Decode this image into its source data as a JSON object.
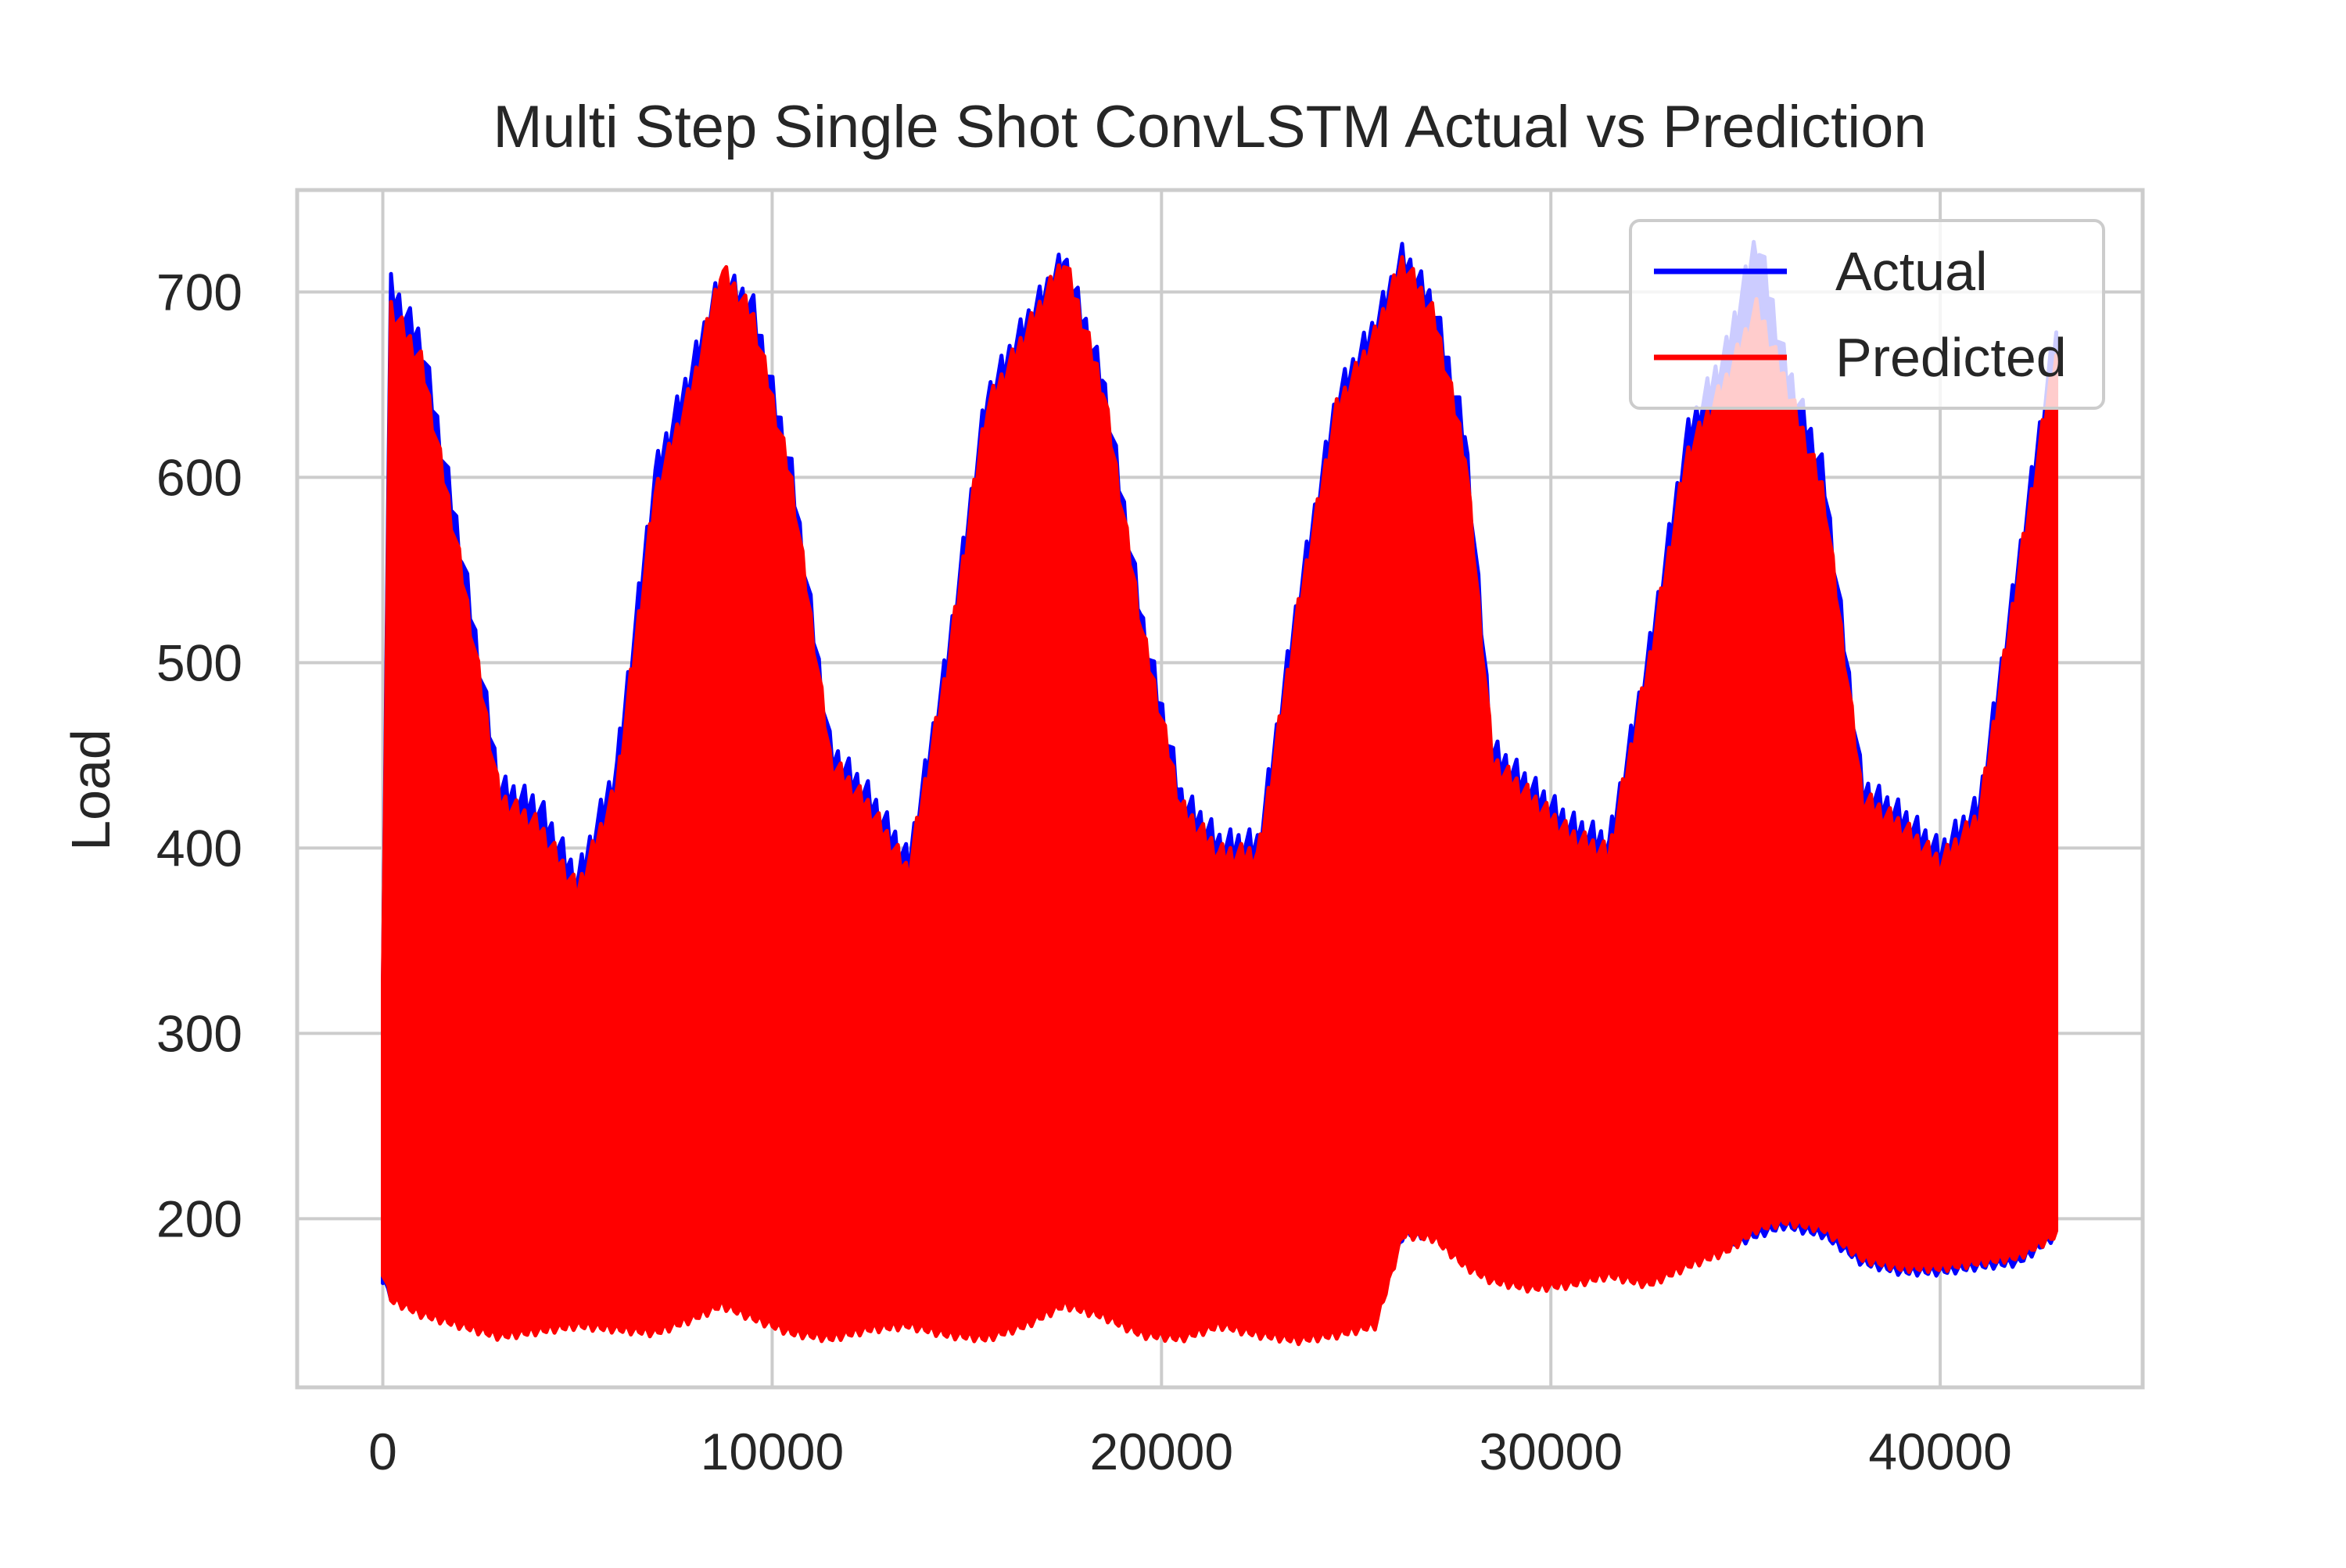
{
  "chart_data": {
    "type": "line",
    "title": "Multi Step Single Shot ConvLSTM Actual vs Prediction",
    "xlabel": "",
    "ylabel": "Load",
    "xlim": [
      -2200,
      45200
    ],
    "ylim": [
      109,
      755
    ],
    "x_ticks": [
      0,
      10000,
      20000,
      30000,
      40000
    ],
    "x_tick_labels": [
      "0",
      "10000",
      "20000",
      "30000",
      "40000"
    ],
    "y_ticks": [
      200,
      300,
      400,
      500,
      600,
      700
    ],
    "y_tick_labels": [
      "200",
      "300",
      "400",
      "500",
      "600",
      "700"
    ],
    "grid": true,
    "legend_position": "upper-right",
    "series": [
      {
        "name": "Actual",
        "color": "#0000ff",
        "envelope": {
          "x": [
            0,
            200,
            1000,
            2000,
            3000,
            4000,
            5000,
            6000,
            7000,
            8000,
            8700,
            9500,
            10500,
            11500,
            12500,
            13500,
            14500,
            15500,
            16500,
            17500,
            18500,
            19500,
            20500,
            21500,
            22500,
            23500,
            24500,
            25500,
            26200,
            27000,
            27800,
            28500,
            29500,
            30500,
            31500,
            32500,
            33500,
            34500,
            35300,
            36000,
            37000,
            38000,
            39000,
            40000,
            41000,
            42000,
            43000
          ],
          "upper": [
            330,
            700,
            670,
            560,
            430,
            420,
            380,
            440,
            600,
            660,
            705,
            690,
            600,
            450,
            425,
            390,
            500,
            640,
            680,
            715,
            650,
            520,
            425,
            400,
            400,
            530,
            640,
            680,
            717,
            690,
            620,
            450,
            430,
            410,
            400,
            500,
            620,
            665,
            727,
            660,
            600,
            430,
            415,
            395,
            420,
            550,
            680
          ],
          "lower": [
            170,
            162,
            155,
            150,
            145,
            148,
            150,
            148,
            146,
            155,
            160,
            155,
            145,
            142,
            148,
            150,
            145,
            143,
            150,
            160,
            155,
            145,
            143,
            150,
            145,
            142,
            145,
            150,
            195,
            195,
            180,
            172,
            168,
            170,
            175,
            170,
            180,
            188,
            195,
            200,
            195,
            180,
            175,
            175,
            178,
            180,
            195
          ]
        }
      },
      {
        "name": "Predicted",
        "color": "#ff0000",
        "envelope": {
          "x": [
            0,
            200,
            1000,
            2000,
            3000,
            4000,
            5000,
            6000,
            7000,
            8000,
            8700,
            9500,
            10500,
            11500,
            12500,
            13500,
            14500,
            15500,
            16500,
            17500,
            18500,
            19500,
            20500,
            21500,
            22500,
            23500,
            24500,
            25500,
            26200,
            27000,
            27800,
            28500,
            29500,
            30500,
            31500,
            32500,
            33500,
            34500,
            35300,
            36000,
            37000,
            38000,
            39000,
            40000,
            41000,
            42000,
            43000
          ],
          "upper": [
            320,
            690,
            660,
            550,
            425,
            410,
            375,
            430,
            590,
            650,
            710,
            685,
            595,
            445,
            420,
            385,
            495,
            635,
            675,
            715,
            645,
            515,
            420,
            395,
            395,
            525,
            635,
            675,
            715,
            685,
            610,
            445,
            425,
            405,
            395,
            495,
            610,
            650,
            690,
            650,
            590,
            425,
            410,
            390,
            415,
            545,
            670
          ],
          "lower": [
            175,
            160,
            152,
            146,
            140,
            143,
            146,
            144,
            142,
            150,
            157,
            150,
            142,
            139,
            144,
            146,
            141,
            139,
            146,
            157,
            151,
            141,
            139,
            146,
            141,
            138,
            141,
            146,
            195,
            193,
            178,
            170,
            166,
            168,
            173,
            168,
            178,
            186,
            198,
            202,
            198,
            182,
            177,
            177,
            180,
            183,
            195
          ]
        }
      }
    ]
  }
}
